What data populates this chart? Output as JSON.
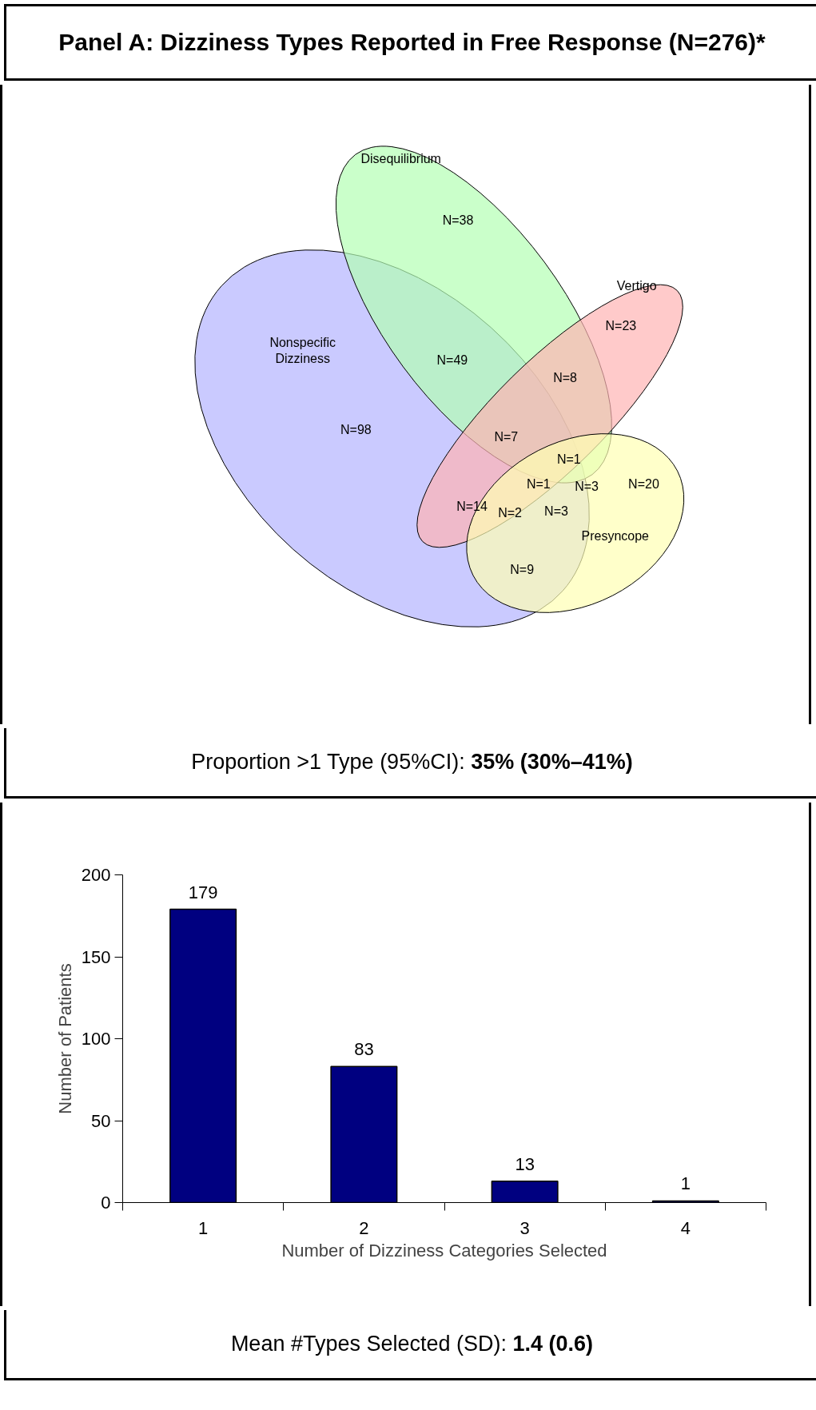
{
  "chart_data": [
    {
      "type": "other",
      "title": "Panel A:  Dizziness Types Reported in Free Response  (N=276)*",
      "categories": [
        "Nonspecific\nDizziness",
        "Disequilibrium",
        "Vertigo",
        "Presyncope"
      ],
      "colors": [
        "#b3b3ff",
        "#b3ffb3",
        "#ffb3b3",
        "#ffffb3"
      ],
      "annotations": [
        "N=23",
        "N=20",
        "N=3",
        "N=8",
        "N=1",
        "N=3",
        "N=1",
        "N=9",
        "N=2",
        "N=7",
        "N=14",
        "N=38",
        "N=49",
        "N=98",
        "Proportion >1 Type (95%CI): 35% (30%–41%)"
      ]
    },
    {
      "type": "bar",
      "categories": [
        "1",
        "2",
        "3",
        "4"
      ],
      "values": [
        179,
        83,
        13,
        1
      ],
      "color": "#000080",
      "xlabel": "Number of Dizziness Categories Selected",
      "ylabel": "Number of Patients",
      "ylim": [
        0,
        200
      ],
      "yticks": [
        0,
        50,
        100,
        150,
        200
      ],
      "data_labels": true,
      "grid": false,
      "annotations": [
        "Mean #Types Selected (SD): 1.4 (0.6)"
      ]
    }
  ]
}
